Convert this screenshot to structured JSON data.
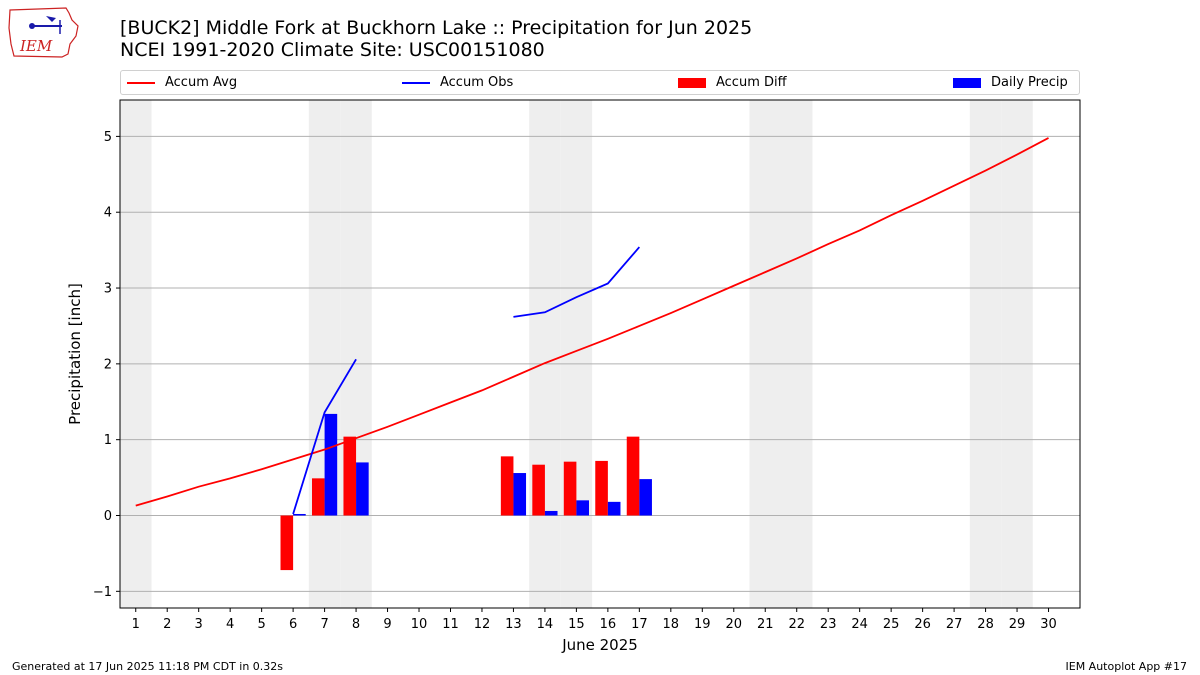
{
  "header": {
    "logo_text": "IEM",
    "title_line1": "[BUCK2] Middle Fork at Buckhorn Lake :: Precipitation for Jun 2025",
    "title_line2": "NCEI 1991-2020 Climate Site: USC00151080"
  },
  "legend": {
    "accum_avg": "Accum Avg",
    "accum_obs": "Accum Obs",
    "accum_diff": "Accum Diff",
    "daily_precip": "Daily Precip"
  },
  "colors": {
    "accum_avg": "#ff0000",
    "accum_obs": "#0000ff",
    "accum_diff": "#ff0000",
    "daily_precip": "#0000ff",
    "weekend_shade": "#eeeeee",
    "grid": "#b0b0b0"
  },
  "chart_data": {
    "type": "bar",
    "xlabel": "June 2025",
    "ylabel": "Precipitation [inch]",
    "xlim": [
      0.5,
      31.0
    ],
    "ylim": [
      -1.22,
      5.48
    ],
    "yticks": [
      -1,
      0,
      1,
      2,
      3,
      4,
      5
    ],
    "xticks": [
      1,
      2,
      3,
      4,
      5,
      6,
      7,
      8,
      9,
      10,
      11,
      12,
      13,
      14,
      15,
      16,
      17,
      18,
      19,
      20,
      21,
      22,
      23,
      24,
      25,
      26,
      27,
      28,
      29,
      30
    ],
    "grid": "horizontal",
    "shaded_days": [
      1,
      7,
      8,
      14,
      15,
      21,
      22,
      28,
      29
    ],
    "accum_avg": {
      "x": [
        1,
        2,
        3,
        4,
        5,
        6,
        7,
        8,
        9,
        10,
        11,
        12,
        13,
        14,
        15,
        16,
        17,
        18,
        19,
        20,
        21,
        22,
        23,
        24,
        25,
        26,
        27,
        28,
        29,
        30
      ],
      "y": [
        0.13,
        0.25,
        0.38,
        0.49,
        0.61,
        0.74,
        0.87,
        1.02,
        1.17,
        1.33,
        1.49,
        1.65,
        1.83,
        2.01,
        2.17,
        2.33,
        2.5,
        2.67,
        2.85,
        3.03,
        3.21,
        3.39,
        3.58,
        3.76,
        3.96,
        4.15,
        4.35,
        4.55,
        4.76,
        4.98
      ]
    },
    "accum_obs": [
      {
        "x": [
          6,
          7,
          8
        ],
        "y": [
          0.02,
          1.36,
          2.06
        ]
      },
      {
        "x": [
          13,
          14,
          15,
          16,
          17
        ],
        "y": [
          2.62,
          2.68,
          2.88,
          3.06,
          3.54
        ]
      }
    ],
    "accum_diff": {
      "x": [
        6,
        7,
        8,
        13,
        14,
        15,
        16,
        17
      ],
      "y": [
        -0.72,
        0.49,
        1.04,
        0.78,
        0.67,
        0.71,
        0.72,
        1.04
      ]
    },
    "daily_precip": {
      "x": [
        6,
        7,
        8,
        13,
        14,
        15,
        16,
        17
      ],
      "y": [
        0.02,
        1.34,
        0.7,
        0.56,
        0.06,
        0.2,
        0.18,
        0.48
      ]
    }
  },
  "footer": {
    "generated": "Generated at 17 Jun 2025 11:18 PM CDT in 0.32s",
    "app": "IEM Autoplot App #17"
  }
}
